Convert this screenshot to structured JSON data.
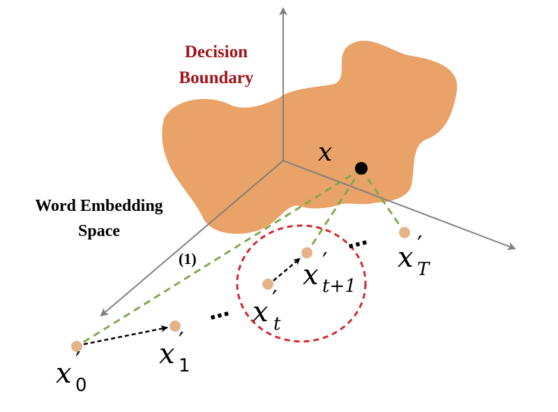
{
  "title": {
    "line1": "Decision",
    "line2": "Boundary"
  },
  "space_label": {
    "line1": "Word Embedding",
    "line2": "Space"
  },
  "step_marker": "(1)",
  "points": {
    "x": "x",
    "x0": {
      "base": "x",
      "prime": "′",
      "sub": "0"
    },
    "x1": {
      "base": "x",
      "prime": "′",
      "sub": "1"
    },
    "xt": {
      "base": "x",
      "prime": "′",
      "sub": "t"
    },
    "xt1": {
      "base": "x",
      "prime": "′",
      "sub": "t+1"
    },
    "xT": {
      "base": "x",
      "prime": "′",
      "sub": "T"
    }
  },
  "ellipsis": "⋯",
  "colors": {
    "boundary_fill": "#E9A267",
    "title_text": "#A0141A",
    "axis": "#7f7f7f",
    "green_dash": "#7FAA4C",
    "red_circle": "#D4252E",
    "point": "#E3B48A",
    "black": "#000000"
  }
}
